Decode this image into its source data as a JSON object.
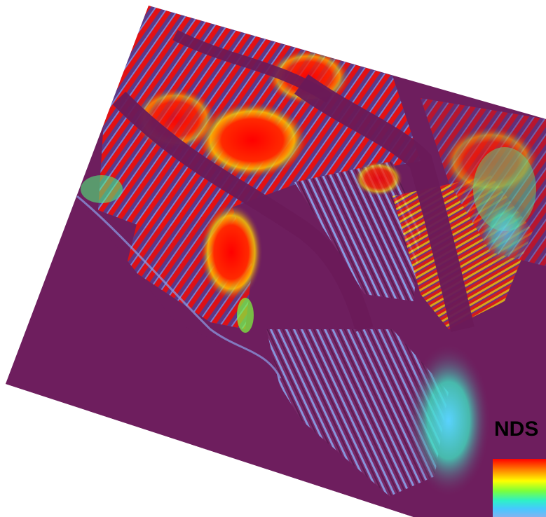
{
  "legend": {
    "title": "NDS",
    "ramp_colors": [
      "#ff0000",
      "#ff8800",
      "#ffff00",
      "#7cff3a",
      "#2ef0c8",
      "#46c8ff",
      "#80b4f0"
    ]
  },
  "map": {
    "background_color": "#6e1e5e",
    "water_color": "#6a1a58",
    "snow_high_color": "#ff0000"
  }
}
